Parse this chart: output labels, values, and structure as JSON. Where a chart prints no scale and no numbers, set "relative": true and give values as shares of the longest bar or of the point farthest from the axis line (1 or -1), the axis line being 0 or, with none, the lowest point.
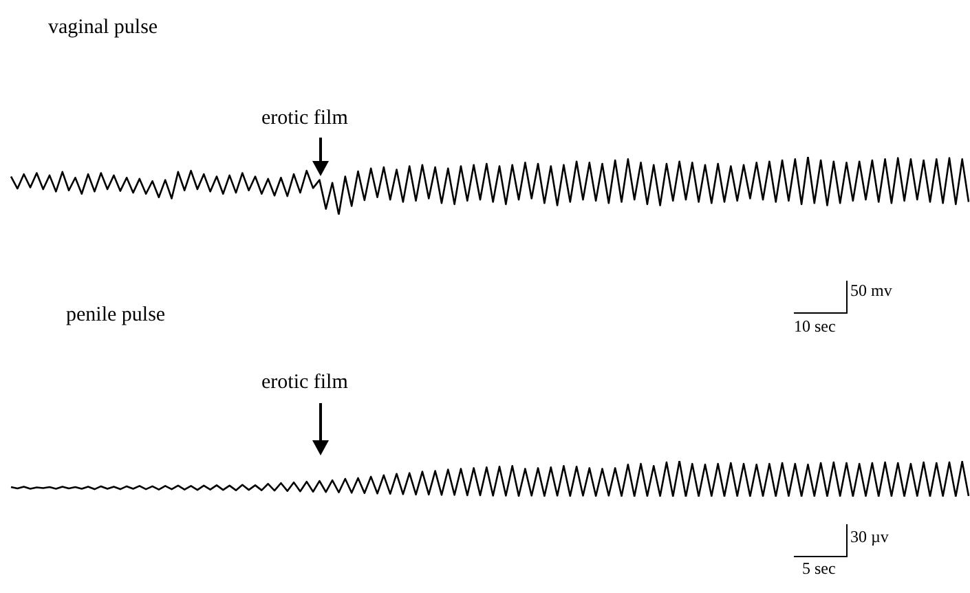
{
  "chart_data": [
    {
      "type": "line",
      "title": "vaginal pulse",
      "relative": true,
      "annotations": [
        "erotic film",
        "50 mv",
        "10 sec"
      ],
      "categories": [
        null,
        null,
        null,
        null,
        null,
        null,
        null,
        null,
        null,
        null,
        null,
        null,
        null,
        null,
        null,
        null,
        null,
        null,
        null,
        null,
        null,
        null,
        null,
        null,
        null,
        null,
        null,
        null,
        null,
        null,
        null,
        null,
        null,
        null,
        null,
        null,
        null,
        null,
        null,
        null,
        null,
        null,
        null,
        null,
        null,
        null,
        null,
        null,
        null,
        null,
        null,
        null,
        null,
        null,
        null,
        null,
        null,
        null,
        null,
        null,
        null,
        null,
        null,
        null,
        null,
        null,
        null,
        null,
        null,
        null,
        null,
        null,
        null,
        null,
        null,
        null,
        null,
        null,
        null,
        null,
        null,
        null,
        null,
        null,
        null,
        null,
        null,
        null,
        null,
        null,
        null,
        null,
        null,
        null,
        null,
        null,
        null,
        null,
        null,
        null,
        null,
        null,
        null,
        null,
        null,
        null,
        null,
        null,
        null,
        null,
        null,
        null,
        null,
        null,
        null,
        null,
        null,
        null,
        null,
        null,
        null,
        null,
        null,
        null,
        null,
        null,
        null,
        null,
        null,
        null,
        null,
        null,
        null,
        null,
        null,
        null,
        null,
        null,
        null,
        null,
        null,
        null,
        null,
        null,
        null,
        null,
        null,
        null,
        null,
        null
      ],
      "series": [
        {
          "color": "#000000",
          "values": [
            0.66,
            0.45,
            0.7,
            0.47,
            0.72,
            0.44,
            0.68,
            0.4,
            0.74,
            0.42,
            0.64,
            0.36,
            0.7,
            0.4,
            0.72,
            0.44,
            0.68,
            0.41,
            0.64,
            0.38,
            0.62,
            0.36,
            0.58,
            0.3,
            0.6,
            0.28,
            0.74,
            0.42,
            0.76,
            0.44,
            0.7,
            0.4,
            0.66,
            0.36,
            0.68,
            0.38,
            0.72,
            0.42,
            0.66,
            0.36,
            0.62,
            0.33,
            0.64,
            0.32,
            0.7,
            0.38,
            0.76,
            0.46,
            0.6,
            0.1,
            0.55,
            0.0,
            0.66,
            0.15,
            0.75,
            0.25,
            0.8,
            0.3,
            0.82,
            0.26,
            0.78,
            0.22,
            0.84,
            0.24,
            0.86,
            0.28,
            0.82,
            0.2,
            0.8,
            0.18,
            0.84,
            0.24,
            0.86,
            0.26,
            0.88,
            0.22,
            0.84,
            0.18,
            0.86,
            0.26,
            0.9,
            0.28,
            0.88,
            0.2,
            0.84,
            0.16,
            0.86,
            0.22,
            0.92,
            0.26,
            0.9,
            0.24,
            0.88,
            0.2,
            0.94,
            0.22,
            0.96,
            0.26,
            0.9,
            0.18,
            0.86,
            0.16,
            0.88,
            0.24,
            0.92,
            0.26,
            0.9,
            0.22,
            0.86,
            0.2,
            0.88,
            0.22,
            0.84,
            0.24,
            0.86,
            0.28,
            0.9,
            0.26,
            0.92,
            0.22,
            0.94,
            0.24,
            0.96,
            0.18,
            1.0,
            0.2,
            0.94,
            0.16,
            0.92,
            0.2,
            0.9,
            0.24,
            0.92,
            0.26,
            0.94,
            0.22,
            0.96,
            0.2,
            0.98,
            0.24,
            0.96,
            0.26,
            0.94,
            0.22,
            0.96,
            0.2,
            0.98,
            0.18,
            0.96,
            0.22
          ]
        }
      ]
    },
    {
      "type": "line",
      "title": "penile pulse",
      "relative": true,
      "annotations": [
        "erotic film",
        "30 µv",
        "5 sec"
      ],
      "categories": [
        null,
        null,
        null,
        null,
        null,
        null,
        null,
        null,
        null,
        null,
        null,
        null,
        null,
        null,
        null,
        null,
        null,
        null,
        null,
        null,
        null,
        null,
        null,
        null,
        null,
        null,
        null,
        null,
        null,
        null,
        null,
        null,
        null,
        null,
        null,
        null,
        null,
        null,
        null,
        null,
        null,
        null,
        null,
        null,
        null,
        null,
        null,
        null,
        null,
        null,
        null,
        null,
        null,
        null,
        null,
        null,
        null,
        null,
        null,
        null,
        null,
        null,
        null,
        null,
        null,
        null,
        null,
        null,
        null,
        null,
        null,
        null,
        null,
        null,
        null,
        null,
        null,
        null,
        null,
        null,
        null,
        null,
        null,
        null,
        null,
        null,
        null,
        null,
        null,
        null,
        null,
        null,
        null,
        null,
        null,
        null,
        null,
        null,
        null,
        null,
        null,
        null,
        null,
        null,
        null,
        null,
        null,
        null,
        null,
        null,
        null,
        null,
        null,
        null,
        null,
        null,
        null,
        null,
        null,
        null,
        null,
        null,
        null,
        null,
        null,
        null,
        null,
        null,
        null,
        null,
        null,
        null,
        null,
        null,
        null,
        null,
        null,
        null,
        null,
        null,
        null,
        null,
        null,
        null,
        null,
        null,
        null,
        null,
        null,
        null
      ],
      "series": [
        {
          "color": "#000000",
          "values": [
            0.27,
            0.23,
            0.28,
            0.22,
            0.26,
            0.24,
            0.27,
            0.22,
            0.28,
            0.23,
            0.27,
            0.22,
            0.28,
            0.21,
            0.29,
            0.22,
            0.28,
            0.21,
            0.29,
            0.22,
            0.3,
            0.21,
            0.29,
            0.2,
            0.3,
            0.21,
            0.31,
            0.2,
            0.3,
            0.19,
            0.31,
            0.2,
            0.32,
            0.19,
            0.31,
            0.18,
            0.33,
            0.19,
            0.32,
            0.18,
            0.36,
            0.17,
            0.38,
            0.16,
            0.4,
            0.15,
            0.42,
            0.14,
            0.44,
            0.13,
            0.46,
            0.12,
            0.5,
            0.11,
            0.52,
            0.1,
            0.56,
            0.09,
            0.6,
            0.08,
            0.64,
            0.07,
            0.66,
            0.06,
            0.7,
            0.06,
            0.72,
            0.05,
            0.76,
            0.05,
            0.78,
            0.04,
            0.8,
            0.04,
            0.82,
            0.03,
            0.84,
            0.03,
            0.86,
            0.02,
            0.78,
            0.03,
            0.8,
            0.02,
            0.82,
            0.03,
            0.86,
            0.02,
            0.84,
            0.03,
            0.8,
            0.02,
            0.78,
            0.03,
            0.8,
            0.02,
            0.9,
            0.01,
            0.92,
            0.02,
            0.86,
            0.02,
            0.96,
            0.01,
            1.0,
            0.0,
            0.92,
            0.01,
            0.9,
            0.02,
            0.92,
            0.01,
            0.94,
            0.02,
            0.92,
            0.01,
            0.9,
            0.02,
            0.92,
            0.01,
            0.94,
            0.02,
            0.92,
            0.01,
            0.9,
            0.02,
            0.94,
            0.01,
            0.96,
            0.02,
            0.94,
            0.01,
            0.92,
            0.02,
            0.94,
            0.01,
            0.96,
            0.02,
            0.94,
            0.01,
            0.92,
            0.02,
            0.96,
            0.01,
            0.94,
            0.02,
            0.96,
            0.01,
            0.98,
            0.02
          ]
        }
      ]
    }
  ]
}
